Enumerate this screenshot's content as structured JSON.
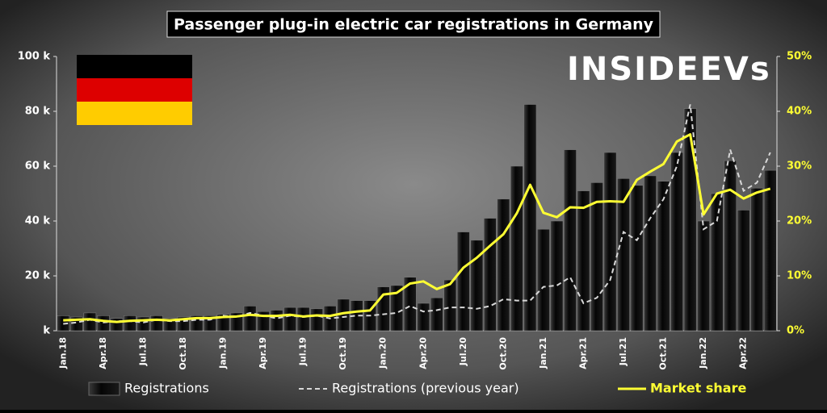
{
  "chart_data": {
    "type": "bar",
    "title": "Passenger plug-in electric car registrations in Germany",
    "logo": "INSIDEEVs",
    "categories": [
      "Jan.18",
      null,
      null,
      "Apr.18",
      null,
      null,
      "Jul.18",
      null,
      null,
      "Oct.18",
      null,
      null,
      "Jan.19",
      null,
      null,
      "Apr.19",
      null,
      null,
      "Jul.19",
      null,
      null,
      "Oct.19",
      null,
      null,
      "Jan.20",
      null,
      null,
      "Apr.20",
      null,
      null,
      "Jul.20",
      null,
      null,
      "Oct.20",
      null,
      null,
      "Jan.21",
      null,
      null,
      "Apr.21",
      null,
      null,
      "Jul.21",
      null,
      null,
      "Oct.21",
      null,
      null,
      "Jan.22",
      null,
      null,
      "Apr.22",
      null,
      null
    ],
    "series": [
      {
        "name": "Registrations",
        "type": "bar",
        "color": "#111111",
        "values": [
          5.5,
          5,
          6.5,
          5.5,
          4.5,
          5.5,
          5,
          5.5,
          4.5,
          5,
          5.5,
          5.5,
          6,
          6.5,
          9,
          7,
          7.5,
          8.5,
          8.5,
          8,
          9,
          11.5,
          11,
          11,
          16,
          16.5,
          19.5,
          10,
          12,
          18.5,
          36,
          33,
          41,
          48,
          60,
          82.5,
          37,
          40,
          66,
          51,
          54,
          65,
          55.5,
          53,
          56.5,
          54.5,
          65,
          81,
          40,
          50,
          62,
          44,
          52,
          58.5
        ]
      },
      {
        "name": "Registrations (previous year)",
        "type": "dashed",
        "color": "#d8d8d8",
        "values": [
          2.5,
          3,
          4,
          3,
          3.5,
          3.5,
          3,
          4,
          3.5,
          3.5,
          4,
          4,
          5.5,
          5,
          6.5,
          5.5,
          4.5,
          5.5,
          5,
          5.5,
          4.5,
          5,
          5.5,
          5.5,
          6,
          6.5,
          9,
          7,
          7.5,
          8.5,
          8.5,
          8,
          9,
          11.5,
          11,
          11,
          16,
          16.5,
          19.5,
          10,
          12,
          18.5,
          36,
          33,
          41,
          48,
          60,
          82.5,
          37,
          40,
          66,
          51,
          54,
          65
        ]
      },
      {
        "name": "Market share",
        "type": "line",
        "axis": "y2",
        "color": "#ffff33",
        "values": [
          1.9,
          2,
          2.1,
          1.8,
          1.6,
          1.8,
          1.9,
          2,
          1.9,
          2.1,
          2.3,
          2.3,
          2.5,
          2.6,
          2.9,
          2.7,
          2.7,
          2.9,
          2.6,
          2.8,
          2.7,
          3.2,
          3.5,
          3.7,
          6.6,
          6.9,
          8.6,
          9,
          7.6,
          8.5,
          11.5,
          13.3,
          15.5,
          17.6,
          21.4,
          26.6,
          21.5,
          20.7,
          22.5,
          22.4,
          23.5,
          23.6,
          23.5,
          27.5,
          29,
          30.4,
          34.5,
          35.8,
          21.2,
          25,
          25.7,
          24.1,
          25.2,
          25.9
        ]
      }
    ],
    "ylim": [
      0,
      100
    ],
    "yticks": [
      {
        "value": 0,
        "label": "k"
      },
      {
        "value": 20,
        "label": "20 k"
      },
      {
        "value": 40,
        "label": "40 k"
      },
      {
        "value": 60,
        "label": "60 k"
      },
      {
        "value": 80,
        "label": "80 k"
      },
      {
        "value": 100,
        "label": "100 k"
      }
    ],
    "y2lim": [
      0,
      50
    ],
    "y2ticks": [
      {
        "value": 0,
        "label": "0%"
      },
      {
        "value": 10,
        "label": "10%"
      },
      {
        "value": 20,
        "label": "20%"
      },
      {
        "value": 30,
        "label": "30%"
      },
      {
        "value": 40,
        "label": "40%"
      },
      {
        "value": 50,
        "label": "50%"
      }
    ]
  }
}
